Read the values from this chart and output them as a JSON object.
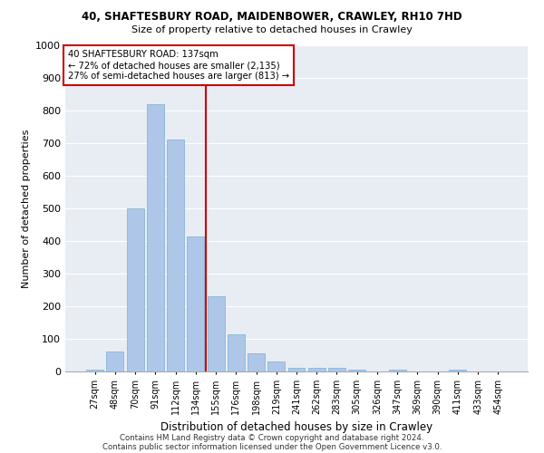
{
  "title1": "40, SHAFTESBURY ROAD, MAIDENBOWER, CRAWLEY, RH10 7HD",
  "title2": "Size of property relative to detached houses in Crawley",
  "xlabel": "Distribution of detached houses by size in Crawley",
  "ylabel": "Number of detached properties",
  "bar_labels": [
    "27sqm",
    "48sqm",
    "70sqm",
    "91sqm",
    "112sqm",
    "134sqm",
    "155sqm",
    "176sqm",
    "198sqm",
    "219sqm",
    "241sqm",
    "262sqm",
    "283sqm",
    "305sqm",
    "326sqm",
    "347sqm",
    "369sqm",
    "390sqm",
    "411sqm",
    "433sqm",
    "454sqm"
  ],
  "bar_values": [
    5,
    60,
    500,
    820,
    710,
    415,
    230,
    115,
    55,
    30,
    10,
    10,
    10,
    5,
    0,
    5,
    0,
    0,
    5,
    0,
    0
  ],
  "bar_color": "#aec6e8",
  "bar_edge_color": "#7aafd4",
  "vline_x": 5.5,
  "vline_color": "#cc0000",
  "annotation_text": "40 SHAFTESBURY ROAD: 137sqm\n← 72% of detached houses are smaller (2,135)\n27% of semi-detached houses are larger (813) →",
  "annotation_box_color": "#cc0000",
  "ylim": [
    0,
    1000
  ],
  "yticks": [
    0,
    100,
    200,
    300,
    400,
    500,
    600,
    700,
    800,
    900,
    1000
  ],
  "bg_color": "#e8edf4",
  "footer1": "Contains HM Land Registry data © Crown copyright and database right 2024.",
  "footer2": "Contains public sector information licensed under the Open Government Licence v3.0."
}
